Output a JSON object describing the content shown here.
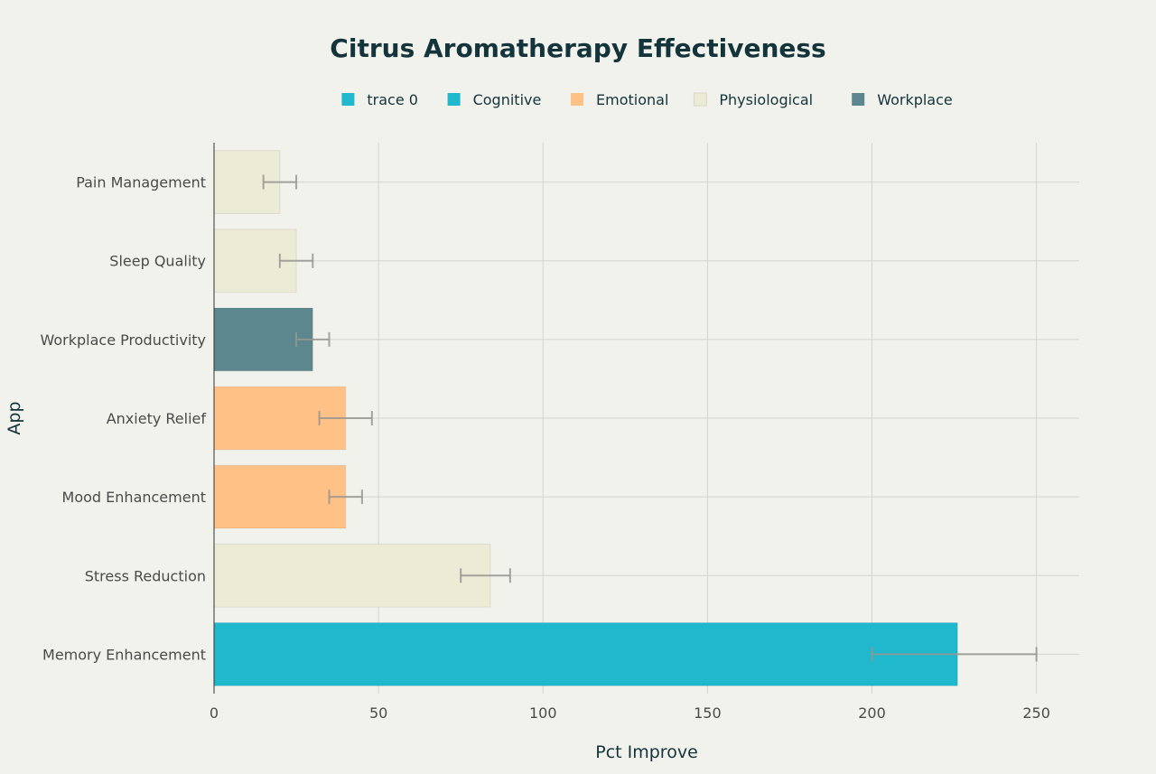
{
  "chart_data": {
    "type": "bar",
    "orientation": "horizontal",
    "title": "Citrus Aromatherapy Effectiveness",
    "xlabel": "Pct Improve",
    "ylabel": "App",
    "xlim": [
      0,
      263
    ],
    "xticks": [
      0,
      50,
      100,
      150,
      200,
      250
    ],
    "grid": true,
    "legend_position": "top",
    "legend": [
      {
        "name": "trace 0",
        "color": "#1fb8cd"
      },
      {
        "name": "Cognitive",
        "color": "#1fb8cd"
      },
      {
        "name": "Emotional",
        "color": "#ffc185"
      },
      {
        "name": "Physiological",
        "color": "#eceBd5"
      },
      {
        "name": "Workplace",
        "color": "#5d878f"
      }
    ],
    "categories": [
      "Pain Management",
      "Sleep Quality",
      "Workplace Productivity",
      "Anxiety Relief",
      "Mood Enhancement",
      "Stress Reduction",
      "Memory Enhancement"
    ],
    "values": [
      20,
      25,
      30,
      40,
      40,
      84,
      226
    ],
    "error_low": [
      15,
      20,
      25,
      32,
      35,
      75,
      200
    ],
    "error_high": [
      25,
      30,
      35,
      48,
      45,
      90,
      250
    ],
    "groups": [
      "Physiological",
      "Physiological",
      "Workplace",
      "Emotional",
      "Emotional",
      "Physiological",
      "Cognitive"
    ],
    "colors": [
      "#ecebd5",
      "#ecebd5",
      "#5d878f",
      "#ffc185",
      "#ffc185",
      "#ecebd5",
      "#1fb8cd"
    ]
  }
}
